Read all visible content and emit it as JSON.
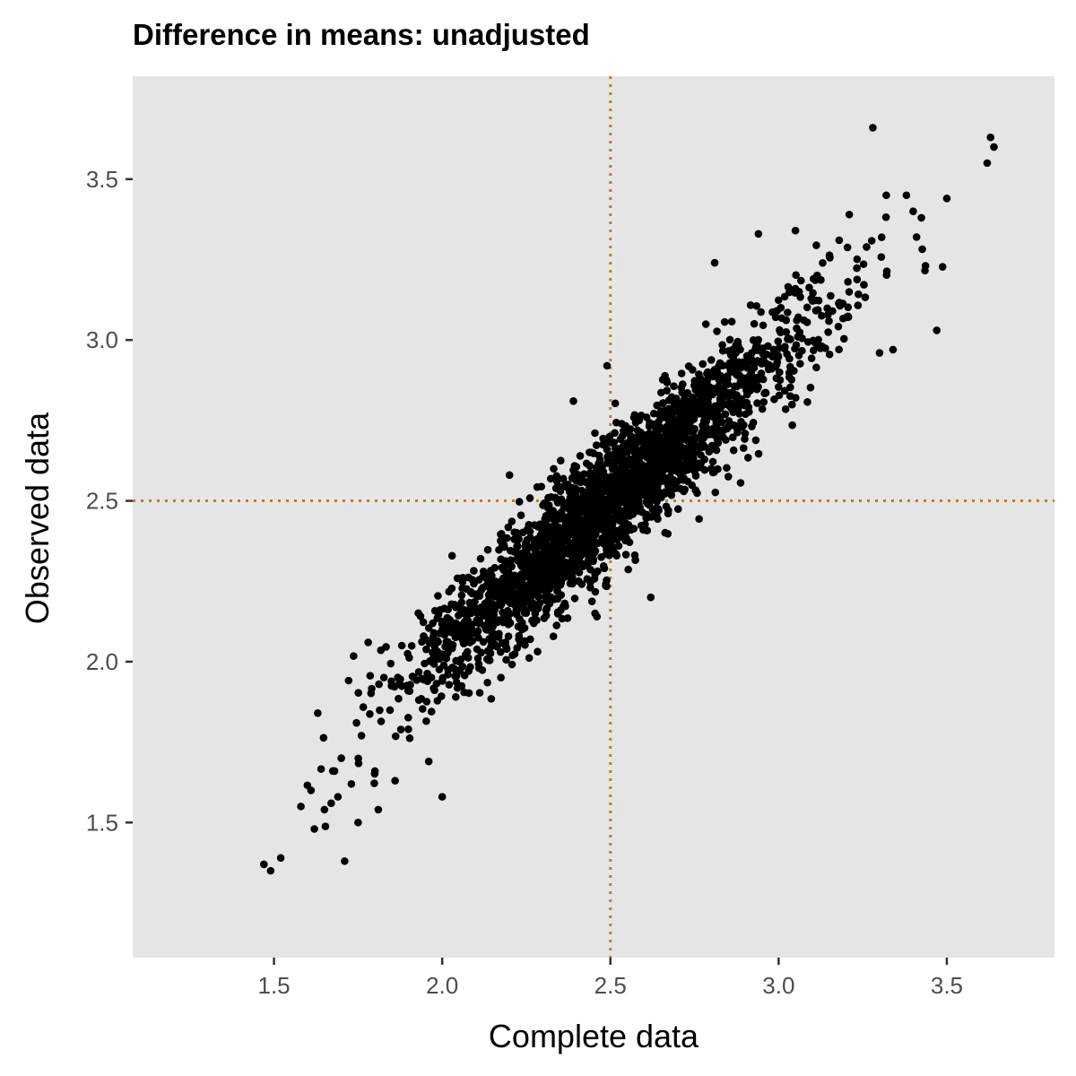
{
  "chart_data": {
    "type": "scatter",
    "title": "Difference in means: unadjusted",
    "xlabel": "Complete data",
    "ylabel": "Observed data",
    "xlim": [
      1.08,
      3.82
    ],
    "ylim": [
      1.08,
      3.82
    ],
    "xticks": [
      "1.5",
      "2.0",
      "2.5",
      "3.0",
      "3.5"
    ],
    "yticks": [
      "1.5",
      "2.0",
      "2.5",
      "3.0",
      "3.5"
    ],
    "grid": false,
    "panel_color": "#e5e5e5",
    "point_color": "#000000",
    "reference_lines": [
      {
        "orientation": "vertical",
        "value": 2.5,
        "style": "dotted",
        "color": "#b8860b"
      },
      {
        "orientation": "horizontal",
        "value": 2.5,
        "style": "dotted",
        "color": "#b8860b"
      }
    ],
    "series": [
      {
        "points": [
          {
            "x": 1.47,
            "y": 1.37
          },
          {
            "x": 1.49,
            "y": 1.35
          },
          {
            "x": 1.52,
            "y": 1.39
          },
          {
            "x": 1.58,
            "y": 1.55
          },
          {
            "x": 1.61,
            "y": 1.6
          },
          {
            "x": 1.62,
            "y": 1.48
          },
          {
            "x": 1.63,
            "y": 1.84
          },
          {
            "x": 1.65,
            "y": 1.54
          },
          {
            "x": 1.67,
            "y": 1.56
          },
          {
            "x": 1.68,
            "y": 1.66
          },
          {
            "x": 1.69,
            "y": 1.58
          },
          {
            "x": 1.7,
            "y": 1.7
          },
          {
            "x": 1.71,
            "y": 1.38
          },
          {
            "x": 1.73,
            "y": 1.62
          },
          {
            "x": 1.75,
            "y": 1.5
          },
          {
            "x": 1.76,
            "y": 1.77
          },
          {
            "x": 1.78,
            "y": 2.06
          },
          {
            "x": 1.8,
            "y": 1.66
          },
          {
            "x": 1.81,
            "y": 1.54
          },
          {
            "x": 1.86,
            "y": 1.63
          },
          {
            "x": 1.88,
            "y": 2.05
          },
          {
            "x": 1.96,
            "y": 1.69
          },
          {
            "x": 2.0,
            "y": 1.58
          },
          {
            "x": 2.2,
            "y": 2.58
          },
          {
            "x": 2.49,
            "y": 2.92
          },
          {
            "x": 2.81,
            "y": 3.24
          },
          {
            "x": 2.94,
            "y": 3.33
          },
          {
            "x": 3.05,
            "y": 3.34
          },
          {
            "x": 3.21,
            "y": 3.39
          },
          {
            "x": 3.28,
            "y": 3.66
          },
          {
            "x": 3.3,
            "y": 2.96
          },
          {
            "x": 3.32,
            "y": 3.45
          },
          {
            "x": 3.34,
            "y": 2.97
          },
          {
            "x": 3.38,
            "y": 3.45
          },
          {
            "x": 3.4,
            "y": 3.4
          },
          {
            "x": 3.41,
            "y": 3.32
          },
          {
            "x": 3.47,
            "y": 3.03
          },
          {
            "x": 3.5,
            "y": 3.44
          },
          {
            "x": 3.62,
            "y": 3.55
          },
          {
            "x": 3.63,
            "y": 3.63
          },
          {
            "x": 3.64,
            "y": 3.6
          },
          {
            "x": 2.39,
            "y": 2.81
          },
          {
            "x": 2.62,
            "y": 2.2
          },
          {
            "x": 2.46,
            "y": 2.14
          },
          {
            "x": 2.8,
            "y": 2.6
          },
          {
            "x": 3.18,
            "y": 3.31
          },
          {
            "x": 3.16,
            "y": 3.09
          }
        ],
        "cloud": {
          "n": 2500,
          "x_mean": 2.5,
          "x_sd": 0.3,
          "y_slope": 0.92,
          "y_noise_sd": 0.095,
          "seed": 7
        }
      }
    ]
  }
}
